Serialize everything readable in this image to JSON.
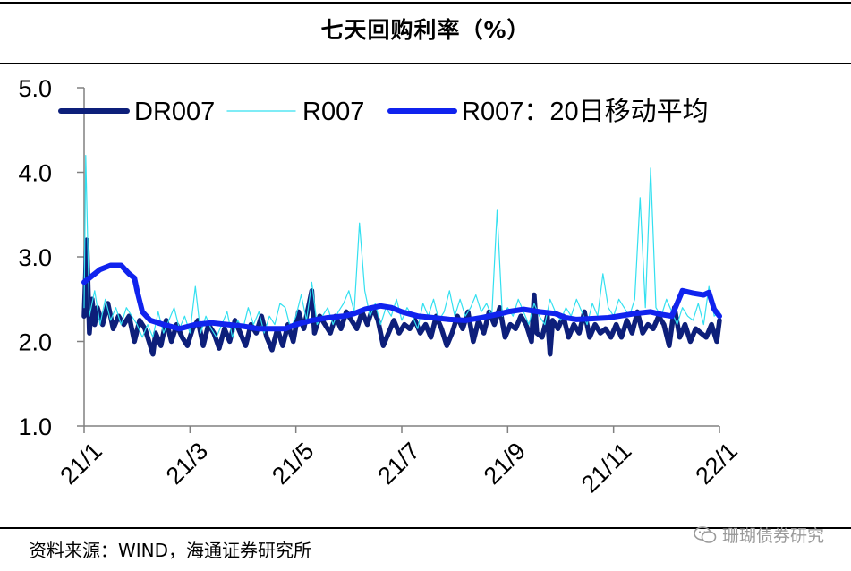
{
  "header": {
    "title": "七天回购利率（%）"
  },
  "footer": {
    "source": "资料来源：WIND，海通证券研究所",
    "watermark": "珊瑚债券研究"
  },
  "colors": {
    "dr007": "#0d1f7a",
    "r007": "#33e0f0",
    "ma20": "#1023ee"
  },
  "chart_data": {
    "type": "line",
    "title": "七天回购利率（%）",
    "xlabel": "",
    "ylabel": "",
    "ylim": [
      1.0,
      5.0
    ],
    "yticks": [
      "1.0",
      "2.0",
      "3.0",
      "4.0",
      "5.0"
    ],
    "xticks": [
      "21/1",
      "21/3",
      "21/5",
      "21/7",
      "21/9",
      "21/11",
      "22/1"
    ],
    "xrange_months": [
      0,
      12
    ],
    "legend_position": "top",
    "series": [
      {
        "name": "DR007",
        "color": "#0d1f7a",
        "x": [
          0,
          0.05,
          0.1,
          0.15,
          0.2,
          0.25,
          0.35,
          0.45,
          0.55,
          0.65,
          0.75,
          0.85,
          0.95,
          1.05,
          1.15,
          1.2,
          1.3,
          1.35,
          1.45,
          1.55,
          1.65,
          1.75,
          1.85,
          1.95,
          2.05,
          2.15,
          2.25,
          2.35,
          2.45,
          2.55,
          2.65,
          2.75,
          2.85,
          2.95,
          3.05,
          3.15,
          3.25,
          3.35,
          3.45,
          3.55,
          3.65,
          3.75,
          3.85,
          3.95,
          4.05,
          4.15,
          4.25,
          4.3,
          4.35,
          4.45,
          4.55,
          4.65,
          4.75,
          4.85,
          4.95,
          5.05,
          5.15,
          5.25,
          5.35,
          5.45,
          5.55,
          5.65,
          5.75,
          5.85,
          5.95,
          6.05,
          6.15,
          6.25,
          6.35,
          6.45,
          6.55,
          6.65,
          6.75,
          6.85,
          6.95,
          7.05,
          7.15,
          7.25,
          7.35,
          7.45,
          7.55,
          7.65,
          7.75,
          7.85,
          7.95,
          8.05,
          8.15,
          8.25,
          8.35,
          8.45,
          8.5,
          8.55,
          8.65,
          8.75,
          8.8,
          8.85,
          8.95,
          9.05,
          9.15,
          9.25,
          9.35,
          9.45,
          9.55,
          9.65,
          9.75,
          9.85,
          9.95,
          10.05,
          10.15,
          10.25,
          10.35,
          10.45,
          10.55,
          10.65,
          10.75,
          10.85,
          10.95,
          11.05,
          11.15,
          11.25,
          11.35,
          11.45,
          11.55,
          11.65,
          11.75,
          11.85,
          11.95,
          12.0
        ],
        "values": [
          2.3,
          3.2,
          2.1,
          2.5,
          2.2,
          2.4,
          2.2,
          2.45,
          2.15,
          2.3,
          2.2,
          2.3,
          2.0,
          2.25,
          2.15,
          2.05,
          1.85,
          2.1,
          1.95,
          2.25,
          2.0,
          2.2,
          2.05,
          1.95,
          2.15,
          2.25,
          1.95,
          2.2,
          2.1,
          1.92,
          2.15,
          2.0,
          2.25,
          2.1,
          1.95,
          2.2,
          2.1,
          2.3,
          2.05,
          1.9,
          2.15,
          1.95,
          2.2,
          2.0,
          2.35,
          2.15,
          2.45,
          2.6,
          2.1,
          2.3,
          2.2,
          2.1,
          2.3,
          2.15,
          2.35,
          2.25,
          2.15,
          2.35,
          2.2,
          2.4,
          2.25,
          1.95,
          2.1,
          2.25,
          2.1,
          2.2,
          2.15,
          2.25,
          2.1,
          2.2,
          2.05,
          2.3,
          2.15,
          1.95,
          2.1,
          2.3,
          2.15,
          2.35,
          2.0,
          2.25,
          2.1,
          2.35,
          2.2,
          2.4,
          2.05,
          2.2,
          2.15,
          2.3,
          2.2,
          2.0,
          2.55,
          2.1,
          2.05,
          2.3,
          1.85,
          2.25,
          2.15,
          2.3,
          2.05,
          2.2,
          2.1,
          2.35,
          2.05,
          2.2,
          2.1,
          2.15,
          2.05,
          2.2,
          2.05,
          2.25,
          2.1,
          2.35,
          2.1,
          2.2,
          2.15,
          2.3,
          2.2,
          1.95,
          2.4,
          2.05,
          2.2,
          2.0,
          2.15,
          2.1,
          2.05,
          2.2,
          2.0,
          2.25
        ]
      },
      {
        "name": "R007",
        "color": "#33e0f0",
        "x": [
          0,
          0.03,
          0.1,
          0.2,
          0.3,
          0.4,
          0.5,
          0.6,
          0.7,
          0.8,
          0.9,
          1.0,
          1.1,
          1.2,
          1.3,
          1.4,
          1.5,
          1.6,
          1.7,
          1.8,
          1.9,
          2.0,
          2.1,
          2.2,
          2.3,
          2.4,
          2.5,
          2.6,
          2.7,
          2.8,
          2.9,
          3.0,
          3.1,
          3.2,
          3.3,
          3.4,
          3.5,
          3.6,
          3.7,
          3.8,
          3.9,
          4.0,
          4.1,
          4.2,
          4.3,
          4.4,
          4.5,
          4.6,
          4.7,
          4.8,
          4.9,
          5.0,
          5.1,
          5.2,
          5.3,
          5.4,
          5.5,
          5.6,
          5.7,
          5.8,
          5.9,
          6.0,
          6.1,
          6.2,
          6.3,
          6.4,
          6.5,
          6.6,
          6.7,
          6.8,
          6.9,
          7.0,
          7.1,
          7.2,
          7.3,
          7.4,
          7.5,
          7.6,
          7.7,
          7.8,
          7.9,
          8.0,
          8.1,
          8.2,
          8.3,
          8.4,
          8.5,
          8.6,
          8.7,
          8.8,
          8.9,
          9.0,
          9.1,
          9.2,
          9.3,
          9.4,
          9.5,
          9.6,
          9.7,
          9.8,
          9.9,
          10.0,
          10.1,
          10.2,
          10.3,
          10.4,
          10.5,
          10.6,
          10.7,
          10.8,
          10.9,
          11.0,
          11.1,
          11.2,
          11.3,
          11.4,
          11.5,
          11.6,
          11.7,
          11.8,
          11.9,
          12.0
        ],
        "values": [
          2.4,
          4.2,
          2.3,
          2.6,
          2.2,
          2.5,
          2.25,
          2.4,
          2.2,
          2.4,
          2.3,
          2.2,
          2.05,
          2.2,
          2.05,
          2.35,
          2.1,
          2.25,
          2.4,
          2.15,
          2.3,
          2.1,
          2.65,
          2.1,
          2.3,
          2.15,
          2.05,
          2.2,
          2.35,
          2.05,
          2.25,
          2.15,
          2.4,
          2.2,
          2.35,
          2.1,
          2.3,
          2.2,
          2.45,
          2.4,
          2.15,
          2.3,
          2.55,
          2.25,
          2.7,
          2.2,
          2.3,
          2.4,
          2.2,
          2.35,
          2.45,
          2.6,
          2.35,
          3.4,
          2.6,
          2.3,
          2.45,
          2.2,
          2.4,
          2.3,
          2.5,
          2.25,
          2.4,
          2.3,
          2.15,
          2.45,
          2.3,
          2.5,
          2.25,
          2.35,
          2.6,
          2.3,
          2.5,
          2.3,
          2.4,
          2.55,
          2.35,
          2.45,
          2.3,
          3.55,
          2.3,
          2.4,
          2.3,
          2.5,
          2.35,
          2.2,
          2.45,
          2.3,
          2.2,
          2.5,
          2.35,
          2.25,
          2.4,
          2.3,
          2.5,
          2.35,
          2.2,
          2.45,
          2.3,
          2.8,
          2.4,
          2.3,
          2.5,
          2.4,
          2.3,
          2.5,
          3.7,
          2.4,
          4.05,
          2.4,
          2.3,
          2.5,
          2.35,
          2.2,
          2.4,
          2.3,
          2.25,
          2.45,
          2.2,
          2.65,
          2.3,
          2.35
        ]
      },
      {
        "name": "R007：20日移动平均",
        "color": "#1023ee",
        "x": [
          0,
          0.3,
          0.5,
          0.7,
          0.85,
          0.95,
          1.0,
          1.1,
          1.25,
          1.5,
          1.8,
          2.1,
          2.4,
          2.7,
          3.0,
          3.3,
          3.5,
          3.8,
          4.0,
          4.3,
          4.6,
          4.9,
          5.1,
          5.3,
          5.6,
          5.8,
          6.0,
          6.3,
          6.6,
          6.9,
          7.2,
          7.5,
          7.8,
          8.0,
          8.3,
          8.6,
          8.9,
          9.1,
          9.3,
          9.6,
          9.9,
          10.1,
          10.4,
          10.7,
          10.9,
          11.1,
          11.3,
          11.5,
          11.7,
          11.8,
          11.9,
          12.0
        ],
        "values": [
          2.7,
          2.85,
          2.9,
          2.9,
          2.8,
          2.75,
          2.6,
          2.35,
          2.25,
          2.2,
          2.15,
          2.2,
          2.22,
          2.2,
          2.18,
          2.15,
          2.15,
          2.15,
          2.2,
          2.25,
          2.28,
          2.3,
          2.33,
          2.38,
          2.42,
          2.4,
          2.35,
          2.3,
          2.28,
          2.26,
          2.25,
          2.28,
          2.32,
          2.35,
          2.38,
          2.35,
          2.33,
          2.28,
          2.26,
          2.27,
          2.28,
          2.3,
          2.33,
          2.35,
          2.32,
          2.3,
          2.6,
          2.57,
          2.55,
          2.58,
          2.38,
          2.3
        ]
      }
    ]
  }
}
